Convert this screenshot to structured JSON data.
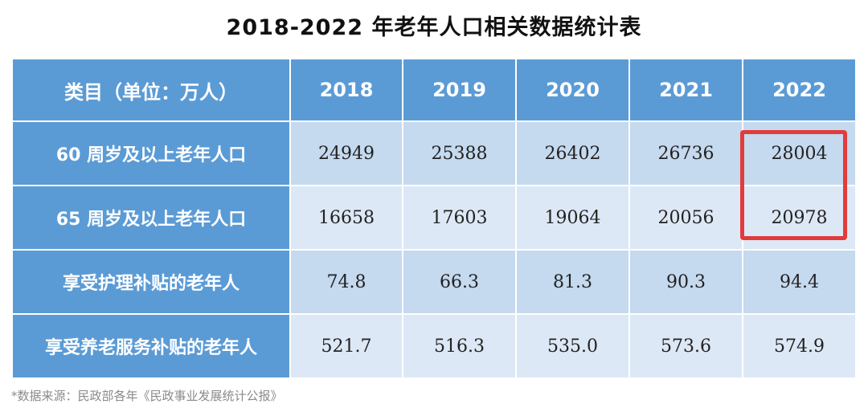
{
  "title": "2018-2022 年老年人口相关数据统计表",
  "footnote": "*数据来源：民政部各年《民政事业发展统计公报》",
  "colors": {
    "header_bg": "#5b9bd5",
    "row_odd_bg": "#c5d9ef",
    "row_even_bg": "#dde8f6",
    "highlight_border": "#e23b3b"
  },
  "chart_data": {
    "type": "table",
    "title": "2018-2022 年老年人口相关数据统计表",
    "header": [
      "类目（单位：万人）",
      "2018",
      "2019",
      "2020",
      "2021",
      "2022"
    ],
    "rows": [
      {
        "label": "60 周岁及以上老年人口",
        "values": [
          "24949",
          "25388",
          "26402",
          "26736",
          "28004"
        ]
      },
      {
        "label": "65 周岁及以上老年人口",
        "values": [
          "16658",
          "17603",
          "19064",
          "20056",
          "20978"
        ]
      },
      {
        "label": "享受护理补贴的老年人",
        "values": [
          "74.8",
          "66.3",
          "81.3",
          "90.3",
          "94.4"
        ]
      },
      {
        "label": "享受养老服务补贴的老年人",
        "values": [
          "521.7",
          "516.3",
          "535.0",
          "573.6",
          "574.9"
        ]
      }
    ],
    "highlighted_cells": [
      {
        "row": 0,
        "column": "2022"
      },
      {
        "row": 1,
        "column": "2022"
      }
    ]
  }
}
